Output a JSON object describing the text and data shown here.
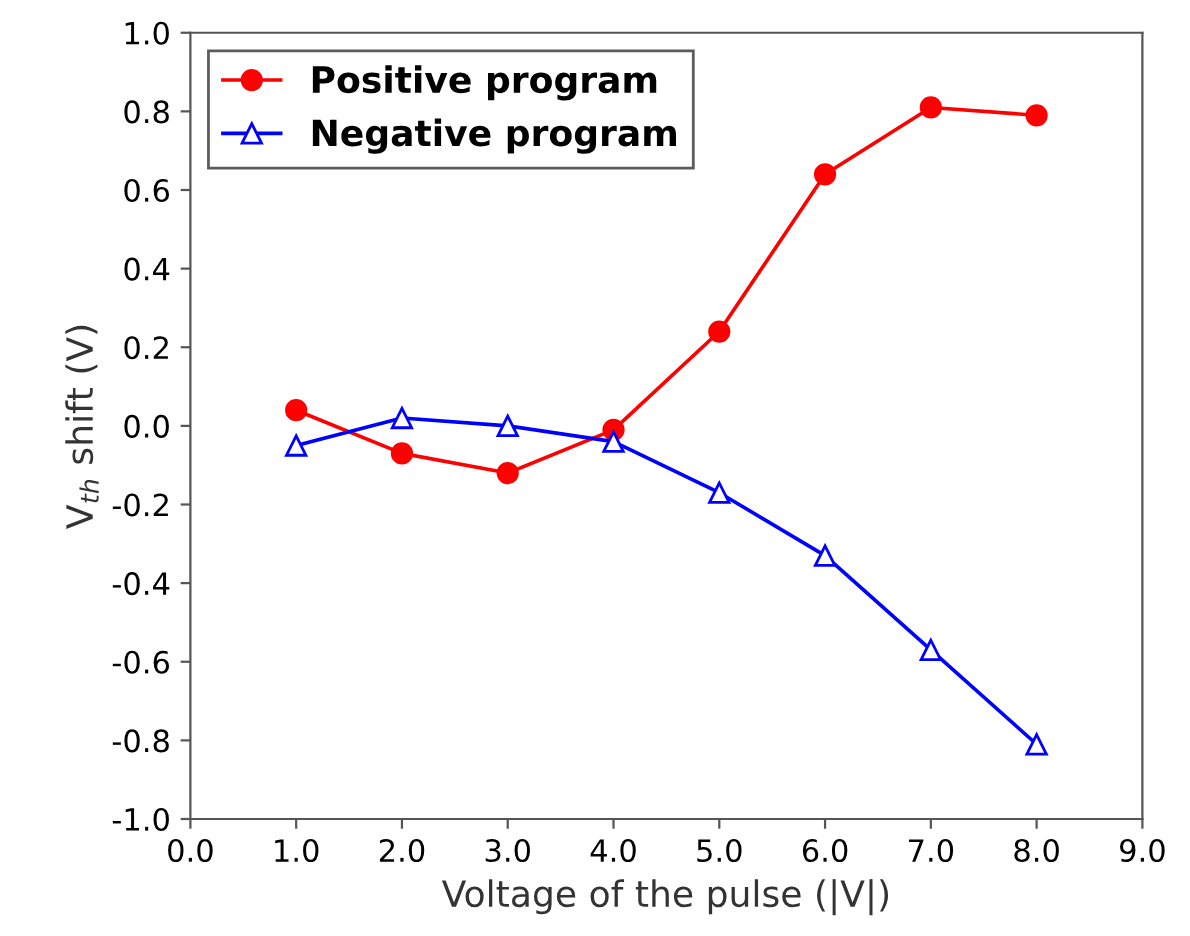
{
  "chart_data": {
    "type": "line",
    "xlabel": "Voltage of the pulse (|V|)",
    "ylabel": "V$_{th}$ shift (V)",
    "x": [
      1.0,
      2.0,
      3.0,
      4.0,
      5.0,
      6.0,
      7.0,
      8.0
    ],
    "series": [
      {
        "name": "Positive program",
        "color": "#ff0000",
        "marker": "circle",
        "values": [
          0.04,
          -0.07,
          -0.12,
          -0.01,
          0.24,
          0.64,
          0.81,
          0.79
        ]
      },
      {
        "name": "Negative program",
        "color": "#0000ff",
        "marker": "triangle",
        "values": [
          -0.05,
          0.02,
          0.0,
          -0.04,
          -0.17,
          -0.33,
          -0.57,
          -0.81
        ]
      }
    ],
    "xlim": [
      0.0,
      9.0
    ],
    "xticks": [
      {
        "value": 0,
        "label": "0.0"
      },
      {
        "value": 1,
        "label": "1.0"
      },
      {
        "value": 2,
        "label": "2.0"
      },
      {
        "value": 3,
        "label": "3.0"
      },
      {
        "value": 4,
        "label": "4.0"
      },
      {
        "value": 5,
        "label": "5.0"
      },
      {
        "value": 6,
        "label": "6.0"
      },
      {
        "value": 7,
        "label": "7.0"
      },
      {
        "value": 8,
        "label": "8.0"
      },
      {
        "value": 9,
        "label": "9.0"
      }
    ],
    "ylim": [
      -1.0,
      1.0
    ],
    "yticks": [
      {
        "value": -1.0,
        "label": "-1.0"
      },
      {
        "value": -0.8,
        "label": "-0.8"
      },
      {
        "value": -0.6,
        "label": "-0.6"
      },
      {
        "value": -0.4,
        "label": "-0.4"
      },
      {
        "value": -0.2,
        "label": "-0.2"
      },
      {
        "value": 0.0,
        "label": "0.0"
      },
      {
        "value": 0.2,
        "label": "0.2"
      },
      {
        "value": 0.4,
        "label": "0.4"
      },
      {
        "value": 0.6,
        "label": "0.6"
      },
      {
        "value": 0.8,
        "label": "0.8"
      },
      {
        "value": 1.0,
        "label": "1.0"
      }
    ],
    "legend": "top left",
    "line_style": "solid"
  }
}
